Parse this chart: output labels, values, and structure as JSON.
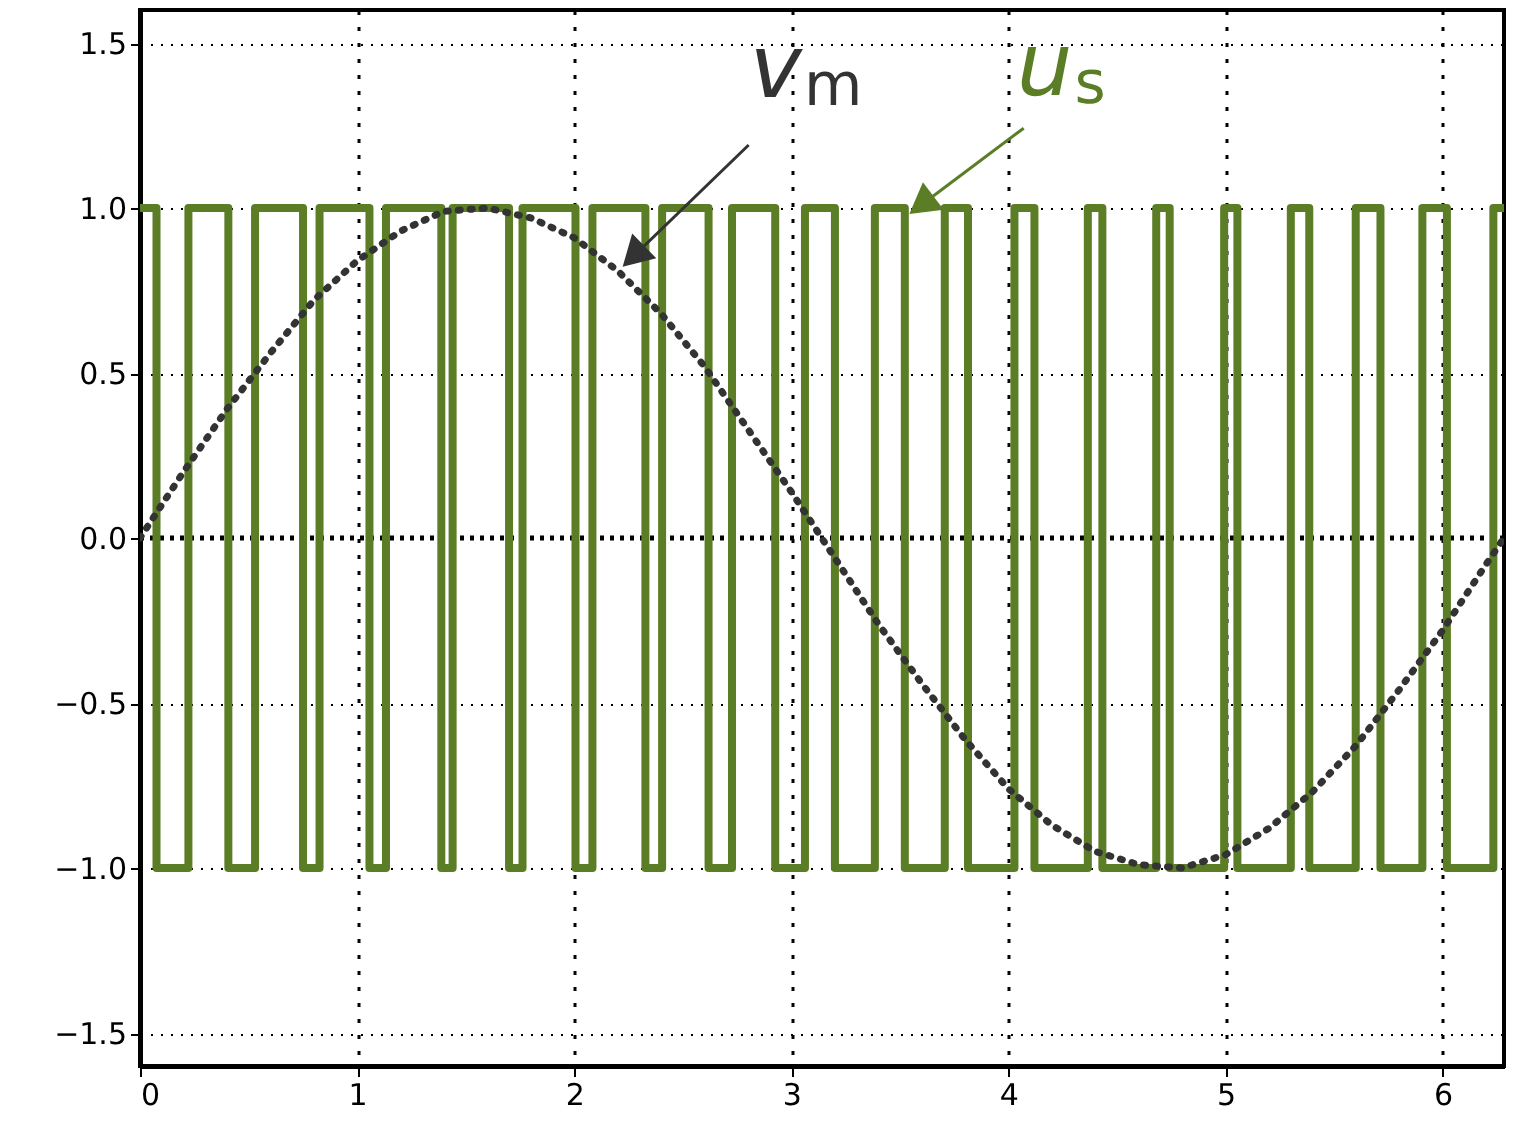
{
  "chart_data": {
    "type": "line",
    "xlim": [
      0,
      6.283
    ],
    "xticks": [
      0,
      1,
      2,
      3,
      4,
      5,
      6
    ],
    "ylim": [
      -1.6,
      1.6
    ],
    "yticks": [
      -1.5,
      {
        "value": -1,
        "label": "−1.0"
      },
      -0.5,
      {
        "value": 0,
        "label": "0.0"
      },
      0.5,
      {
        "value": 1,
        "label": "1.0"
      },
      1.5
    ],
    "grid": true,
    "marker": "none",
    "series": [
      {
        "type": "step",
        "color": "#5b7d25",
        "x": [
          0,
          0.076,
          0.223,
          0.407,
          0.53,
          0.751,
          0.827,
          1.057,
          1.133,
          1.388,
          1.44,
          1.7,
          1.762,
          2.006,
          2.084,
          2.328,
          2.405,
          2.619,
          2.727,
          2.926,
          3.063,
          3.201,
          3.385,
          3.523,
          3.707,
          3.814,
          4.028,
          4.12,
          4.366,
          4.433,
          4.681,
          4.743,
          4.994,
          5.055,
          5.301,
          5.386,
          5.6,
          5.714,
          5.907,
          6.02,
          6.234,
          6.283
        ],
        "values": [
          1,
          -1,
          1,
          -1,
          1,
          -1,
          1,
          -1,
          1,
          -1,
          1,
          -1,
          1,
          -1,
          1,
          -1,
          1,
          -1,
          1,
          -1,
          1,
          -1,
          1,
          -1,
          1,
          -1,
          1,
          -1,
          1,
          -1,
          1,
          -1,
          1,
          -1,
          1,
          -1,
          1,
          -1,
          1,
          -1,
          1,
          1
        ]
      },
      {
        "color": "#333333",
        "line_style": "dotted",
        "x": [
          0,
          0.2,
          0.4,
          0.6,
          0.8,
          1.0,
          1.2,
          1.4,
          1.6,
          1.8,
          2.0,
          2.2,
          2.4,
          2.6,
          2.8,
          3.0,
          3.2,
          3.4,
          3.6,
          3.8,
          4.0,
          4.2,
          4.4,
          4.6,
          4.8,
          5.0,
          5.2,
          5.4,
          5.6,
          5.8,
          6.0,
          6.2,
          6.283
        ],
        "values": [
          0,
          0.2,
          0.39,
          0.56,
          0.72,
          0.84,
          0.93,
          0.99,
          1.0,
          0.97,
          0.91,
          0.81,
          0.68,
          0.52,
          0.33,
          0.14,
          -0.06,
          -0.26,
          -0.44,
          -0.61,
          -0.76,
          -0.87,
          -0.95,
          -0.99,
          -1.0,
          -0.96,
          -0.88,
          -0.77,
          -0.63,
          -0.46,
          -0.28,
          -0.08,
          0
        ]
      }
    ],
    "ref_lines": [
      {
        "axis": "y",
        "value": 0,
        "color": "#000000",
        "line_style": "dotted"
      }
    ],
    "annotations": [
      {
        "text": "u$_{s}$",
        "x": 3.54,
        "y": 0.98
      },
      {
        "text": "v$_{m}$",
        "x": 2.22,
        "y": 0.82
      }
    ]
  }
}
